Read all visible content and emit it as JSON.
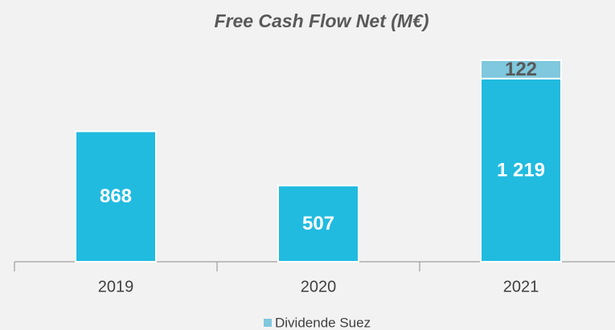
{
  "chart_data": {
    "type": "stacked_bar",
    "title": "Free Cash Flow Net (M€)",
    "categories": [
      "2019",
      "2020",
      "2021"
    ],
    "series": [
      {
        "color": "#21bbe0",
        "values": [
          868,
          507,
          1219
        ],
        "value_labels": [
          "868",
          "507",
          "1 219"
        ]
      },
      {
        "name": "Dividende Suez",
        "color": "#7fc8dd",
        "values": [
          null,
          null,
          122
        ]
      }
    ],
    "legend": "bottom"
  }
}
